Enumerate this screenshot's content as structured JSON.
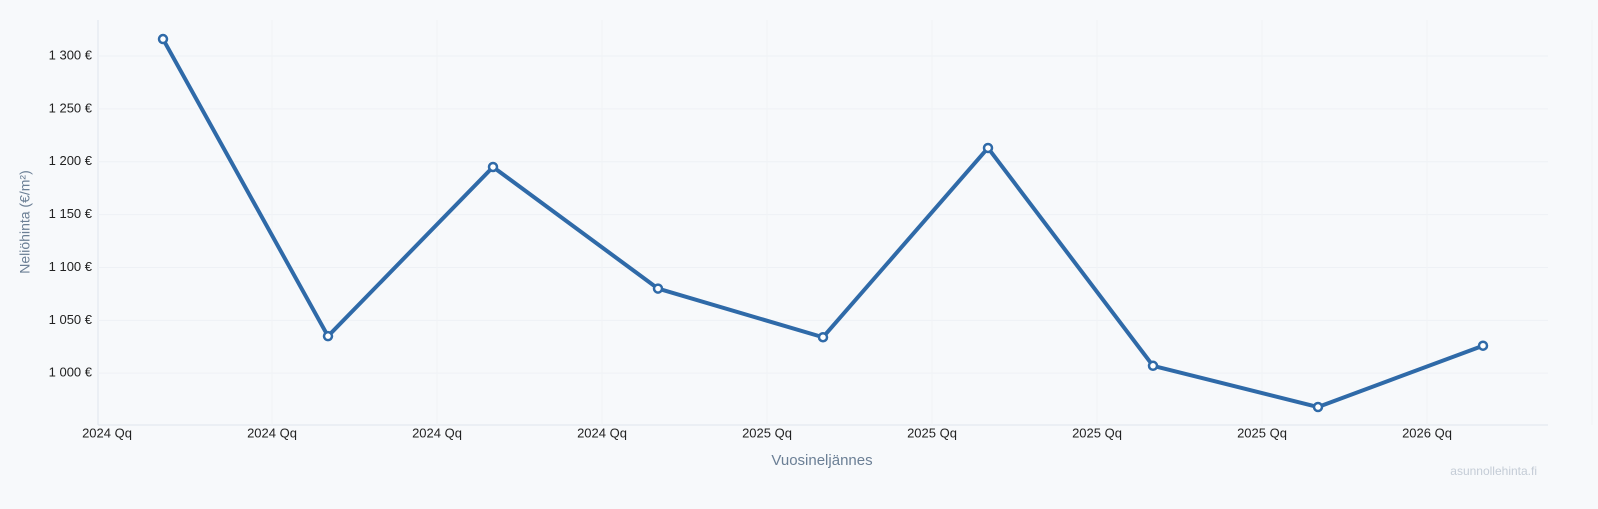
{
  "chart_data": {
    "type": "line",
    "y_label": "Neliöhinta (€/m²)",
    "x_label": "Vuosineljännes",
    "watermark": "asunnollehinta.fi",
    "categories": [
      "2024 Qq",
      "2024 Qq",
      "2024 Qq",
      "2024 Qq",
      "2025 Qq",
      "2025 Qq",
      "2025 Qq",
      "2025 Qq",
      "2026 Qq"
    ],
    "series": [
      {
        "name": "Neliöhinta",
        "color": "#2f6aa8",
        "values": [
          1316,
          1035,
          1195,
          1080,
          1034,
          1213,
          1007,
          968,
          1026
        ]
      }
    ],
    "ylim": [
      951,
      1334
    ],
    "yticks": [
      {
        "value": 1000,
        "label": "1 000 €"
      },
      {
        "value": 1050,
        "label": "1 050 €"
      },
      {
        "value": 1100,
        "label": "1 100 €"
      },
      {
        "value": 1150,
        "label": "1 150 €"
      },
      {
        "value": 1200,
        "label": "1 200 €"
      },
      {
        "value": 1250,
        "label": "1 250 €"
      },
      {
        "value": 1300,
        "label": "1 300 €"
      }
    ],
    "grid": true
  }
}
